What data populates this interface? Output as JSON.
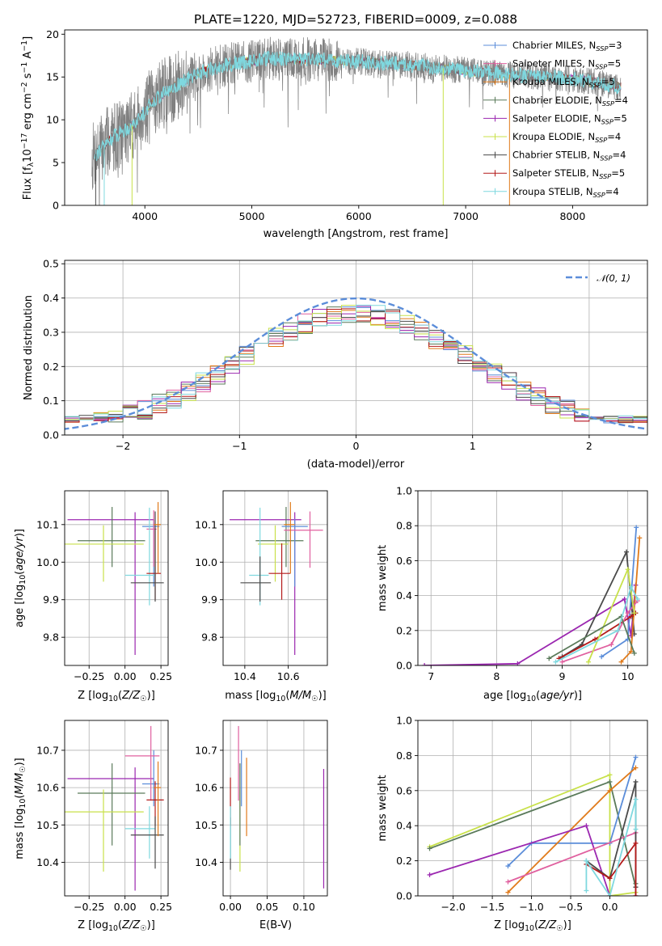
{
  "title": "PLATE=1220, MJD=52723, FIBERID=0009, z=0.088",
  "colors": {
    "chabrier_miles": "#5b8dd9",
    "salpeter_miles": "#e0609f",
    "kroupa_miles": "#e07a1a",
    "chabrier_elodie": "#5a7a5a",
    "salpeter_elodie": "#9b27b0",
    "kroupa_elodie": "#c8e14a",
    "chabrier_stelib": "#4a4a4a",
    "salpeter_stelib": "#b31a1a",
    "kroupa_stelib": "#7fd8df",
    "data": "#808080",
    "normal": "#5b8dd9"
  },
  "chart_data": [
    {
      "type": "line",
      "panel": "spectrum",
      "xlabel": "wavelength [Angstrom, rest frame]",
      "ylabel": "Flux [f_λ10^-17 erg cm^-2 s^-1 A^-1]",
      "xlim": [
        3250,
        8700
      ],
      "ylim": [
        0,
        20.5
      ],
      "xticks": [
        4000,
        5000,
        6000,
        7000,
        8000
      ],
      "yticks": [
        0,
        5,
        10,
        15,
        20
      ],
      "continuum": {
        "x": [
          3500,
          3700,
          3900,
          4100,
          4300,
          4500,
          4800,
          5200,
          5600,
          6000,
          6400,
          6800,
          7200,
          7500,
          7800,
          8100,
          8450
        ],
        "y": [
          5.5,
          8,
          9.5,
          12.5,
          14,
          15.5,
          16.5,
          17.2,
          17.0,
          16.8,
          16.5,
          16.0,
          15.5,
          15.2,
          15.0,
          14.6,
          13.8
        ]
      },
      "legend": [
        {
          "key": "chabrier_miles",
          "label": "Chabrier MILES, N",
          "n": "3"
        },
        {
          "key": "salpeter_miles",
          "label": "Salpeter MILES, N",
          "n": "5"
        },
        {
          "key": "kroupa_miles",
          "label": "Kroupa MILES, N",
          "n": "5"
        },
        {
          "key": "chabrier_elodie",
          "label": "Chabrier ELODIE, N",
          "n": "4"
        },
        {
          "key": "salpeter_elodie",
          "label": "Salpeter ELODIE, N",
          "n": "5"
        },
        {
          "key": "kroupa_elodie",
          "label": "Kroupa ELODIE, N",
          "n": "4"
        },
        {
          "key": "chabrier_stelib",
          "label": "Chabrier STELIB, N",
          "n": "4"
        },
        {
          "key": "salpeter_stelib",
          "label": "Salpeter STELIB, N",
          "n": "5"
        },
        {
          "key": "kroupa_stelib",
          "label": "Kroupa STELIB, N",
          "n": "4"
        }
      ],
      "legend_sub": "SSP",
      "legend_placement": "upper right"
    },
    {
      "type": "histogram",
      "panel": "residuals",
      "xlabel": "(data-model)/error",
      "ylabel": "Normed distribution",
      "xlim": [
        -2.5,
        2.5
      ],
      "ylim": [
        0,
        0.51
      ],
      "xticks": [
        -2,
        -1,
        0,
        1,
        2
      ],
      "yticks": [
        0,
        0.1,
        0.2,
        0.3,
        0.4,
        0.5
      ],
      "bin_width": 0.125,
      "legend_label": "𝒩(0, 1)",
      "grid": true
    },
    {
      "type": "errorbar",
      "panel": "age_vs_Z",
      "xlabel": "Z [log₁₀(Z/Z☉)]",
      "ylabel": "age  [log₁₀(age/yr)]",
      "xlim": [
        -0.42,
        0.3
      ],
      "ylim": [
        9.725,
        10.19
      ],
      "xticks": [
        -0.25,
        0.0,
        0.25
      ],
      "yticks": [
        9.8,
        9.9,
        10.0,
        10.1
      ],
      "points": [
        {
          "key": "salpeter_elodie",
          "x": 0.07,
          "xerr": [
            0.47,
            0.13
          ],
          "y": 10.113,
          "yerr": [
            0.36,
            0.02
          ]
        },
        {
          "key": "chabrier_elodie",
          "x": -0.09,
          "xerr": [
            0.24,
            0.23
          ],
          "y": 10.057,
          "yerr": [
            0.07,
            0.09
          ]
        },
        {
          "key": "kroupa_elodie",
          "x": -0.15,
          "xerr": [
            0.27,
            0.28
          ],
          "y": 10.048,
          "yerr": [
            0.1,
            0.05
          ]
        },
        {
          "key": "chabrier_miles",
          "x": 0.2,
          "xerr": [
            0.08,
            0.04
          ],
          "y": 10.095,
          "yerr": [
            0.16,
            0.02
          ]
        },
        {
          "key": "salpeter_miles",
          "x": 0.2,
          "xerr": [
            0.05,
            0.02
          ],
          "y": 10.088,
          "yerr": [
            0.1,
            0.05
          ]
        },
        {
          "key": "kroupa_stelib",
          "x": 0.17,
          "xerr": [
            0.17,
            0.04
          ],
          "y": 9.965,
          "yerr": [
            0.08,
            0.18
          ]
        },
        {
          "key": "salpeter_stelib",
          "x": 0.21,
          "xerr": [
            0.06,
            0.04
          ],
          "y": 9.97,
          "yerr": [
            0.07,
            0.12
          ]
        },
        {
          "key": "chabrier_stelib",
          "x": 0.21,
          "xerr": [
            0.17,
            0.06
          ],
          "y": 9.945,
          "yerr": [
            0.05,
            0.19
          ]
        },
        {
          "key": "kroupa_miles",
          "x": 0.23,
          "xerr": [
            0.03,
            0.02
          ],
          "y": 10.1,
          "yerr": [
            0.13,
            0.06
          ]
        }
      ]
    },
    {
      "type": "errorbar",
      "panel": "age_vs_mass",
      "xlabel": "mass [log₁₀(M/M☉)]",
      "ylabel": "",
      "xlim": [
        10.3,
        10.78
      ],
      "ylim": [
        9.725,
        10.19
      ],
      "xticks": [
        10.4,
        10.6
      ],
      "yticks": [
        9.8,
        9.9,
        10.0,
        10.1
      ],
      "points": [
        {
          "key": "salpeter_elodie",
          "x": 10.63,
          "xerr": [
            0.3,
            0.03
          ],
          "y": 10.113,
          "yerr": [
            0.36,
            0.02
          ]
        },
        {
          "key": "chabrier_elodie",
          "x": 10.59,
          "xerr": [
            0.14,
            0.08
          ],
          "y": 10.057,
          "yerr": [
            0.07,
            0.09
          ]
        },
        {
          "key": "kroupa_elodie",
          "x": 10.54,
          "xerr": [
            0.08,
            0.06
          ],
          "y": 10.048,
          "yerr": [
            0.1,
            0.05
          ]
        },
        {
          "key": "chabrier_miles",
          "x": 10.63,
          "xerr": [
            0.06,
            0.06
          ],
          "y": 10.095,
          "yerr": [
            0.16,
            0.02
          ]
        },
        {
          "key": "salpeter_miles",
          "x": 10.7,
          "xerr": [
            0.12,
            0.06
          ],
          "y": 10.085,
          "yerr": [
            0.1,
            0.05
          ]
        },
        {
          "key": "kroupa_stelib",
          "x": 10.47,
          "xerr": [
            0.05,
            0.04
          ],
          "y": 9.965,
          "yerr": [
            0.08,
            0.18
          ]
        },
        {
          "key": "salpeter_stelib",
          "x": 10.57,
          "xerr": [
            0.06,
            0.04
          ],
          "y": 9.97,
          "yerr": [
            0.07,
            0.08
          ]
        },
        {
          "key": "chabrier_stelib",
          "x": 10.47,
          "xerr": [
            0.09,
            0.05
          ],
          "y": 9.945,
          "yerr": [
            0.05,
            0.07
          ]
        },
        {
          "key": "kroupa_miles",
          "x": 10.61,
          "xerr": [
            0.03,
            0.02
          ],
          "y": 10.1,
          "yerr": [
            0.13,
            0.06
          ]
        }
      ]
    },
    {
      "type": "line",
      "panel": "weight_vs_age",
      "xlabel": "age  [log₁₀(age/yr)]",
      "ylabel": "mass weight",
      "xlim": [
        6.8,
        10.3
      ],
      "ylim": [
        0,
        1.0
      ],
      "xticks": [
        7,
        8,
        9,
        10
      ],
      "yticks": [
        0,
        0.2,
        0.4,
        0.6,
        0.8,
        1.0
      ],
      "series": [
        {
          "key": "salpeter_elodie",
          "x": [
            6.9,
            8.32,
            9.95,
            10.05,
            10.12
          ],
          "y": [
            0.0,
            0.01,
            0.38,
            0.17,
            0.46
          ]
        },
        {
          "key": "chabrier_stelib",
          "x": [
            9.0,
            9.3,
            9.98,
            10.1
          ],
          "y": [
            0.05,
            0.12,
            0.65,
            0.18
          ]
        },
        {
          "key": "chabrier_miles",
          "x": [
            9.6,
            10.0,
            10.13
          ],
          "y": [
            0.05,
            0.15,
            0.79
          ]
        },
        {
          "key": "kroupa_miles",
          "x": [
            9.9,
            10.05,
            10.18
          ],
          "y": [
            0.02,
            0.08,
            0.73
          ]
        },
        {
          "key": "salpeter_stelib",
          "x": [
            8.95,
            9.5,
            10.05,
            10.12
          ],
          "y": [
            0.04,
            0.15,
            0.28,
            0.3
          ]
        },
        {
          "key": "salpeter_miles",
          "x": [
            9.0,
            9.75,
            10.0,
            10.15
          ],
          "y": [
            0.02,
            0.12,
            0.3,
            0.37
          ]
        },
        {
          "key": "kroupa_elodie",
          "x": [
            9.4,
            10.0,
            10.1
          ],
          "y": [
            0.02,
            0.55,
            0.3
          ]
        },
        {
          "key": "chabrier_elodie",
          "x": [
            8.8,
            9.9,
            10.1
          ],
          "y": [
            0.04,
            0.28,
            0.07
          ]
        },
        {
          "key": "kroupa_stelib",
          "x": [
            8.9,
            9.85,
            10.05,
            10.15
          ],
          "y": [
            0.02,
            0.2,
            0.45,
            0.38
          ]
        }
      ]
    },
    {
      "type": "errorbar",
      "panel": "mass_vs_Z",
      "xlabel": "Z [log₁₀(Z/Z☉)]",
      "ylabel": "mass [log₁₀(M/M☉)]",
      "xlim": [
        -0.42,
        0.3
      ],
      "ylim": [
        10.31,
        10.78
      ],
      "xticks": [
        -0.25,
        0.0,
        0.25
      ],
      "yticks": [
        10.4,
        10.5,
        10.6,
        10.7
      ],
      "points": [
        {
          "key": "salpeter_elodie",
          "x": 0.07,
          "xerr": [
            0.47,
            0.13
          ],
          "y": 10.624,
          "yerr": [
            0.3,
            0.03
          ]
        },
        {
          "key": "chabrier_elodie",
          "x": -0.09,
          "xerr": [
            0.24,
            0.23
          ],
          "y": 10.585,
          "yerr": [
            0.14,
            0.08
          ]
        },
        {
          "key": "kroupa_elodie",
          "x": -0.15,
          "xerr": [
            0.27,
            0.28
          ],
          "y": 10.535,
          "yerr": [
            0.16,
            0.06
          ]
        },
        {
          "key": "chabrier_miles",
          "x": 0.2,
          "xerr": [
            0.08,
            0.04
          ],
          "y": 10.61,
          "yerr": [
            0.06,
            0.09
          ]
        },
        {
          "key": "salpeter_miles",
          "x": 0.18,
          "xerr": [
            0.18,
            0.06
          ],
          "y": 10.685,
          "yerr": [
            0.12,
            0.08
          ]
        },
        {
          "key": "kroupa_stelib",
          "x": 0.17,
          "xerr": [
            0.17,
            0.04
          ],
          "y": 10.49,
          "yerr": [
            0.08,
            0.06
          ]
        },
        {
          "key": "salpeter_stelib",
          "x": 0.21,
          "xerr": [
            0.06,
            0.06
          ],
          "y": 10.567,
          "yerr": [
            0.07,
            0.05
          ]
        },
        {
          "key": "chabrier_stelib",
          "x": 0.21,
          "xerr": [
            0.17,
            0.06
          ],
          "y": 10.473,
          "yerr": [
            0.09,
            0.05
          ]
        },
        {
          "key": "kroupa_miles",
          "x": 0.23,
          "xerr": [
            0.03,
            0.02
          ],
          "y": 10.6,
          "yerr": [
            0.13,
            0.07
          ]
        }
      ]
    },
    {
      "type": "errorbar",
      "panel": "mass_vs_ebv",
      "xlabel": "E(B-V)",
      "ylabel": "",
      "xlim": [
        -0.01,
        0.132
      ],
      "ylim": [
        10.31,
        10.78
      ],
      "xticks": [
        0.0,
        0.05,
        0.1
      ],
      "yticks": [
        10.4,
        10.5,
        10.6,
        10.7
      ],
      "points": [
        {
          "key": "chabrier_stelib",
          "x": 0.0,
          "y": 10.47,
          "yerr": [
            0.09,
            0.05
          ]
        },
        {
          "key": "salpeter_stelib",
          "x": 0.0,
          "y": 10.567,
          "yerr": [
            0.07,
            0.06
          ]
        },
        {
          "key": "kroupa_stelib",
          "x": 0.0,
          "y": 10.49,
          "yerr": [
            0.08,
            0.06
          ]
        },
        {
          "key": "salpeter_miles",
          "x": 0.011,
          "y": 10.685,
          "yerr": [
            0.12,
            0.08
          ]
        },
        {
          "key": "chabrier_miles",
          "x": 0.015,
          "y": 10.61,
          "yerr": [
            0.06,
            0.09
          ]
        },
        {
          "key": "kroupa_elodie",
          "x": 0.013,
          "y": 10.535,
          "yerr": [
            0.16,
            0.06
          ]
        },
        {
          "key": "chabrier_elodie",
          "x": 0.013,
          "y": 10.585,
          "yerr": [
            0.14,
            0.08
          ]
        },
        {
          "key": "kroupa_miles",
          "x": 0.022,
          "y": 10.6,
          "yerr": [
            0.13,
            0.08
          ]
        },
        {
          "key": "salpeter_elodie",
          "x": 0.127,
          "y": 10.6,
          "yerr": [
            0.27,
            0.05
          ]
        }
      ]
    },
    {
      "type": "line",
      "panel": "weight_vs_Z",
      "xlabel": "Z [log₁₀(Z/Z☉)]",
      "ylabel": "mass weight",
      "xlim": [
        -2.45,
        0.48
      ],
      "ylim": [
        0,
        1.0
      ],
      "xticks": [
        -2.0,
        -1.5,
        -1.0,
        -0.5,
        0.0
      ],
      "yticks": [
        0,
        0.2,
        0.4,
        0.6,
        0.8,
        1.0
      ],
      "series": [
        {
          "key": "kroupa_elodie",
          "x": [
            -2.3,
            0.0,
            0.0,
            0.33
          ],
          "y": [
            0.28,
            0.69,
            0.0,
            0.02
          ]
        },
        {
          "key": "chabrier_elodie",
          "x": [
            -2.3,
            0.0,
            0.33,
            0.33
          ],
          "y": [
            0.27,
            0.65,
            0.05,
            0.07
          ]
        },
        {
          "key": "chabrier_miles",
          "x": [
            -1.3,
            -1.0,
            0.0,
            0.33
          ],
          "y": [
            0.17,
            0.3,
            0.3,
            0.79
          ]
        },
        {
          "key": "kroupa_miles",
          "x": [
            -1.3,
            0.0,
            0.33
          ],
          "y": [
            0.02,
            0.6,
            0.73
          ]
        },
        {
          "key": "salpeter_elodie",
          "x": [
            -2.3,
            -0.3,
            0.0
          ],
          "y": [
            0.12,
            0.4,
            0.0
          ]
        },
        {
          "key": "salpeter_miles",
          "x": [
            -1.3,
            0.33,
            0.33
          ],
          "y": [
            0.08,
            0.36,
            0.0
          ]
        },
        {
          "key": "chabrier_stelib",
          "x": [
            -0.3,
            0.0,
            0.33,
            0.33
          ],
          "y": [
            0.2,
            0.1,
            0.65,
            0.05
          ]
        },
        {
          "key": "salpeter_stelib",
          "x": [
            -0.3,
            0.0,
            0.33,
            0.33
          ],
          "y": [
            0.18,
            0.1,
            0.3,
            0.0
          ]
        },
        {
          "key": "kroupa_stelib",
          "x": [
            -0.3,
            -0.3,
            0.0,
            0.33,
            0.33
          ],
          "y": [
            0.03,
            0.2,
            0.0,
            0.55,
            0.38
          ]
        }
      ]
    }
  ]
}
